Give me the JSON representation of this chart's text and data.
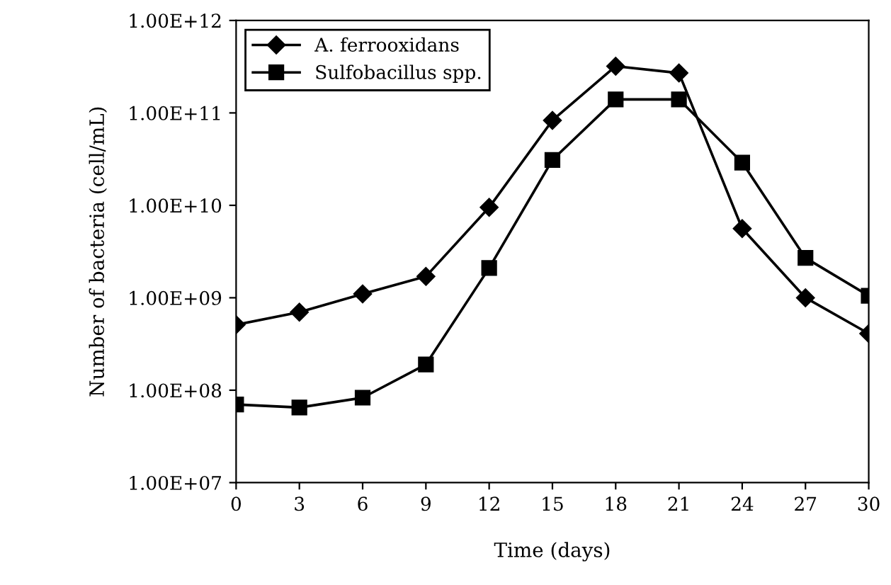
{
  "chart_data": {
    "type": "line",
    "xlabel": "Time (days)",
    "ylabel": "Number of bacteria (cell/mL)",
    "x": [
      0,
      3,
      6,
      9,
      12,
      15,
      18,
      21,
      24,
      27,
      30
    ],
    "series": [
      {
        "name": "A. ferrooxidans",
        "color": "#000000",
        "marker": "diamond",
        "values": [
          510000000.0,
          700000000.0,
          1100000000.0,
          1700000000.0,
          9500000000.0,
          83000000000.0,
          320000000000.0,
          270000000000.0,
          5600000000.0,
          1000000000.0,
          410000000.0
        ]
      },
      {
        "name": "Sulfobacillus spp.",
        "color": "#000000",
        "marker": "square",
        "values": [
          70000000.0,
          65000000.0,
          83000000.0,
          190000000.0,
          2100000000.0,
          31000000000.0,
          140000000000.0,
          140000000000.0,
          29000000000.0,
          2700000000.0,
          1050000000.0
        ]
      }
    ],
    "log": "y",
    "xlim": [
      0,
      30
    ],
    "xticks": [
      0,
      3,
      6,
      9,
      12,
      15,
      18,
      21,
      24,
      27,
      30
    ],
    "ylim": [
      10000000.0,
      1000000000000.0
    ],
    "yticks": [
      {
        "value": 10000000.0,
        "label": "1.00E+07"
      },
      {
        "value": 100000000.0,
        "label": "1.00E+08"
      },
      {
        "value": 1000000000.0,
        "label": "1.00E+09"
      },
      {
        "value": 10000000000.0,
        "label": "1.00E+10"
      },
      {
        "value": 100000000000.0,
        "label": "1.00E+11"
      },
      {
        "value": 1000000000000.0,
        "label": "1.00E+12"
      }
    ],
    "grid": false,
    "legend": "top left",
    "line_style": "solid"
  }
}
